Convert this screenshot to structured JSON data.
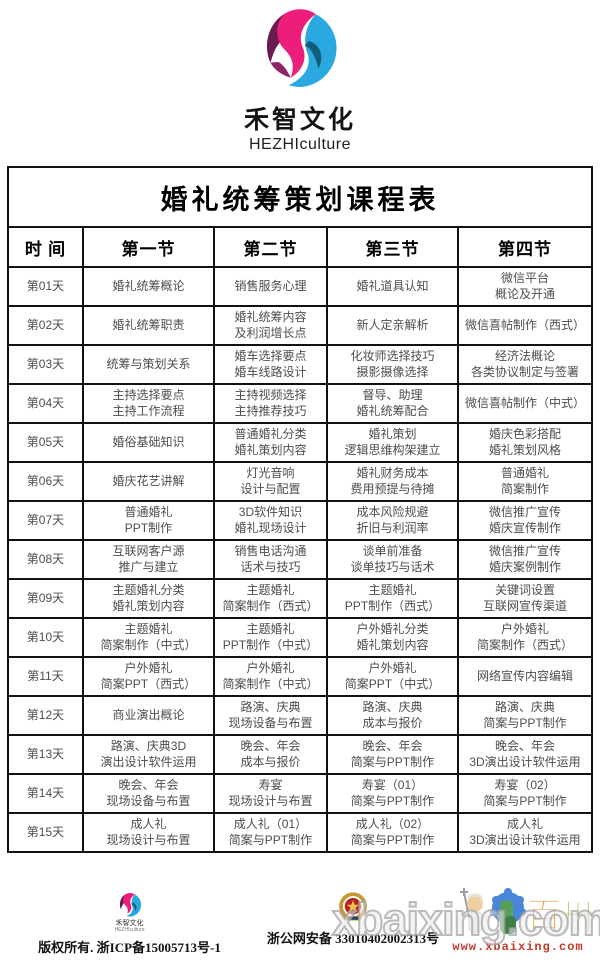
{
  "brand": {
    "name": "禾智文化",
    "latin": "HEZHIculture",
    "colors": {
      "plum": "#6a1b52",
      "pink": "#ec1e79",
      "blue": "#29a9e0",
      "navy": "#145d78"
    }
  },
  "table": {
    "title": "婚礼统筹策划课程表",
    "columns": [
      "时  间",
      "第一节",
      "第二节",
      "第三节",
      "第四节"
    ],
    "rows": [
      {
        "day": "第01天",
        "cells": [
          [
            "婚礼统筹概论"
          ],
          [
            "销售服务心理"
          ],
          [
            "婚礼道具认知"
          ],
          [
            "微信平台",
            "概论及开通"
          ]
        ]
      },
      {
        "day": "第02天",
        "cells": [
          [
            "婚礼统筹职责"
          ],
          [
            "婚礼统筹内容",
            "及利润增长点"
          ],
          [
            "新人定亲解析"
          ],
          [
            "微信喜帖制作（西式）"
          ]
        ]
      },
      {
        "day": "第03天",
        "cells": [
          [
            "统筹与策划关系"
          ],
          [
            "婚车选择要点",
            "婚车线路设计"
          ],
          [
            "化妆师选择技巧",
            "摄影摄像选择"
          ],
          [
            "经济法概论",
            "各类协议制定与签署"
          ]
        ]
      },
      {
        "day": "第04天",
        "cells": [
          [
            "主持选择要点",
            "主持工作流程"
          ],
          [
            "主持视频选择",
            "主持推荐技巧"
          ],
          [
            "督导、助理",
            "婚礼统筹配合"
          ],
          [
            "微信喜帖制作（中式）"
          ]
        ]
      },
      {
        "day": "第05天",
        "cells": [
          [
            "婚俗基础知识"
          ],
          [
            "普通婚礼分类",
            "婚礼策划内容"
          ],
          [
            "婚礼策划",
            "逻辑思维构架建立"
          ],
          [
            "婚庆色彩搭配",
            "婚礼策划风格"
          ]
        ]
      },
      {
        "day": "第06天",
        "cells": [
          [
            "婚庆花艺讲解"
          ],
          [
            "灯光音响",
            "设计与配置"
          ],
          [
            "婚礼财务成本",
            "费用预提与待摊"
          ],
          [
            "普通婚礼",
            "简案制作"
          ]
        ]
      },
      {
        "day": "第07天",
        "cells": [
          [
            "普通婚礼",
            "PPT制作"
          ],
          [
            "3D软件知识",
            "婚礼现场设计"
          ],
          [
            "成本风险规避",
            "折旧与利润率"
          ],
          [
            "微信推广宣传",
            "婚庆宣传制作"
          ]
        ]
      },
      {
        "day": "第08天",
        "cells": [
          [
            "互联网客户源",
            "推广与建立"
          ],
          [
            "销售电话沟通",
            "话术与技巧"
          ],
          [
            "谈单前准备",
            "谈单技巧与话术"
          ],
          [
            "微信推广宣传",
            "婚庆案例制作"
          ]
        ]
      },
      {
        "day": "第09天",
        "cells": [
          [
            "主题婚礼分类",
            "婚礼策划内容"
          ],
          [
            "主题婚礼",
            "简案制作（西式）"
          ],
          [
            "主题婚礼",
            "PPT制作（西式）"
          ],
          [
            "关键词设置",
            "互联网宣传渠道"
          ]
        ]
      },
      {
        "day": "第10天",
        "cells": [
          [
            "主题婚礼",
            "简案制作（中式）"
          ],
          [
            "主题婚礼",
            "PPT制作（中式）"
          ],
          [
            "户外婚礼分类",
            "婚礼策划内容"
          ],
          [
            "户外婚礼",
            "简案制作（西式）"
          ]
        ]
      },
      {
        "day": "第11天",
        "cells": [
          [
            "户外婚礼",
            "简案PPT（西式）"
          ],
          [
            "户外婚礼",
            "简案制作（中式）"
          ],
          [
            "户外婚礼",
            "简案PPT（中式）"
          ],
          [
            "网络宣传内容编辑"
          ]
        ]
      },
      {
        "day": "第12天",
        "cells": [
          [
            "商业演出概论"
          ],
          [
            "路演、庆典",
            "现场设备与布置"
          ],
          [
            "路演、庆典",
            "成本与报价"
          ],
          [
            "路演、庆典",
            "简案与PPT制作"
          ]
        ]
      },
      {
        "day": "第13天",
        "cells": [
          [
            "路演、庆典3D",
            "演出设计软件运用"
          ],
          [
            "晚会、年会",
            "成本与报价"
          ],
          [
            "晚会、年会",
            "简案与PPT制作"
          ],
          [
            "晚会、年会",
            "3D演出设计软件运用"
          ]
        ]
      },
      {
        "day": "第14天",
        "cells": [
          [
            "晚会、年会",
            "现场设备与布置"
          ],
          [
            "寿宴",
            "现场设计与布置"
          ],
          [
            "寿宴（01）",
            "简案与PPT制作"
          ],
          [
            "寿宴（02）",
            "简案与PPT制作"
          ]
        ]
      },
      {
        "day": "第15天",
        "cells": [
          [
            "成人礼",
            "现场设计与布置"
          ],
          [
            "成人礼（01）",
            "简案与PPT制作"
          ],
          [
            "成人礼（02）",
            "简案与PPT制作"
          ],
          [
            "成人礼",
            "3D演出设计软件运用"
          ]
        ]
      }
    ]
  },
  "footer": {
    "copyright": "版权所有. 浙ICP备15005713号-1",
    "police_record": "浙公网安备 33010402002313号",
    "watermark_text": "xbaixing.com",
    "watermark_url": "www.xbaixing.com",
    "icons": {
      "brand_logo": "hezhi-swirl-logo",
      "police_badge": "police-badge",
      "right_logo": "xbaixing-mascot-logo"
    }
  }
}
